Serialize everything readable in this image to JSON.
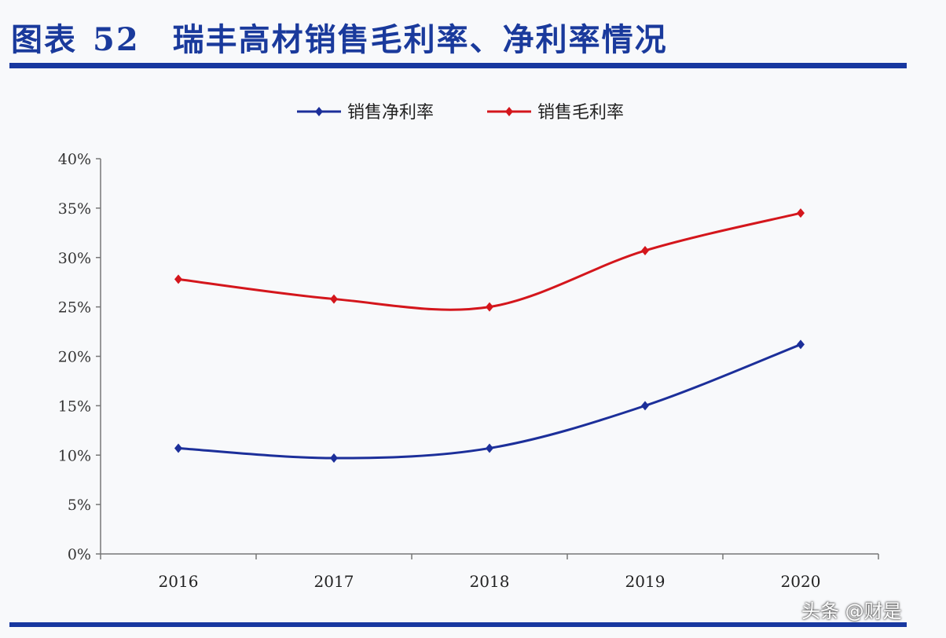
{
  "title": {
    "prefix": "图表",
    "number": "52",
    "text": "瑞丰高材销售毛利率、净利率情况"
  },
  "watermark": "头条 @财是",
  "chart_data": {
    "type": "line",
    "title": "瑞丰高材销售毛利率、净利率情况",
    "categories": [
      "2016",
      "2017",
      "2018",
      "2019",
      "2020"
    ],
    "series": [
      {
        "name": "销售净利率",
        "color": "#1c2f9a",
        "values": [
          10.7,
          9.7,
          10.7,
          15.0,
          21.2
        ]
      },
      {
        "name": "销售毛利率",
        "color": "#d4161c",
        "values": [
          27.8,
          25.8,
          25.0,
          30.7,
          34.5
        ]
      }
    ],
    "ylim": [
      0,
      40
    ],
    "yticks": [
      0,
      5,
      10,
      15,
      20,
      25,
      30,
      35,
      40
    ],
    "ytick_labels": [
      "0%",
      "5%",
      "10%",
      "15%",
      "20%",
      "25%",
      "30%",
      "35%",
      "40%"
    ],
    "xlabel": "",
    "ylabel": "",
    "grid": false,
    "legend": "top-center",
    "unit": "%"
  }
}
